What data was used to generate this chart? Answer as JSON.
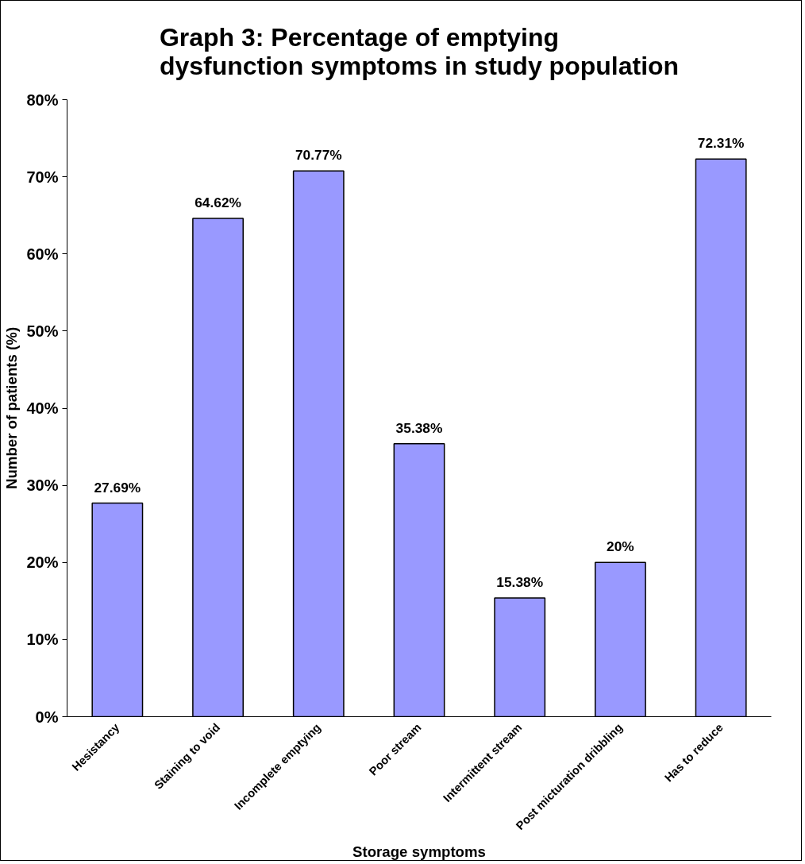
{
  "chart_data": {
    "type": "bar",
    "title": "Graph 3: Percentage of emptying\ndysfunction symptoms in study population",
    "xlabel": "Storage symptoms",
    "ylabel": "Number of patients (%)",
    "categories": [
      "Hesistancy",
      "Staining to void",
      "Incomplete emptying",
      "Poor stream",
      "Intermittent stream",
      "Post micturation dribbling",
      "Has to reduce"
    ],
    "values": [
      27.69,
      64.62,
      70.77,
      35.38,
      15.38,
      20,
      72.31
    ],
    "value_labels": [
      "27.69%",
      "64.62%",
      "70.77%",
      "35.38%",
      "15.38%",
      "20%",
      "72.31%"
    ],
    "color": "#9999ff",
    "ylim": [
      0,
      80
    ],
    "yticks": [
      {
        "value": 0,
        "label": "0%"
      },
      {
        "value": 10,
        "label": "10%"
      },
      {
        "value": 20,
        "label": "20%"
      },
      {
        "value": 30,
        "label": "30%"
      },
      {
        "value": 40,
        "label": "40%"
      },
      {
        "value": 50,
        "label": "50%"
      },
      {
        "value": 60,
        "label": "60%"
      },
      {
        "value": 70,
        "label": "70%"
      },
      {
        "value": 80,
        "label": "80%"
      }
    ],
    "grid": false
  }
}
